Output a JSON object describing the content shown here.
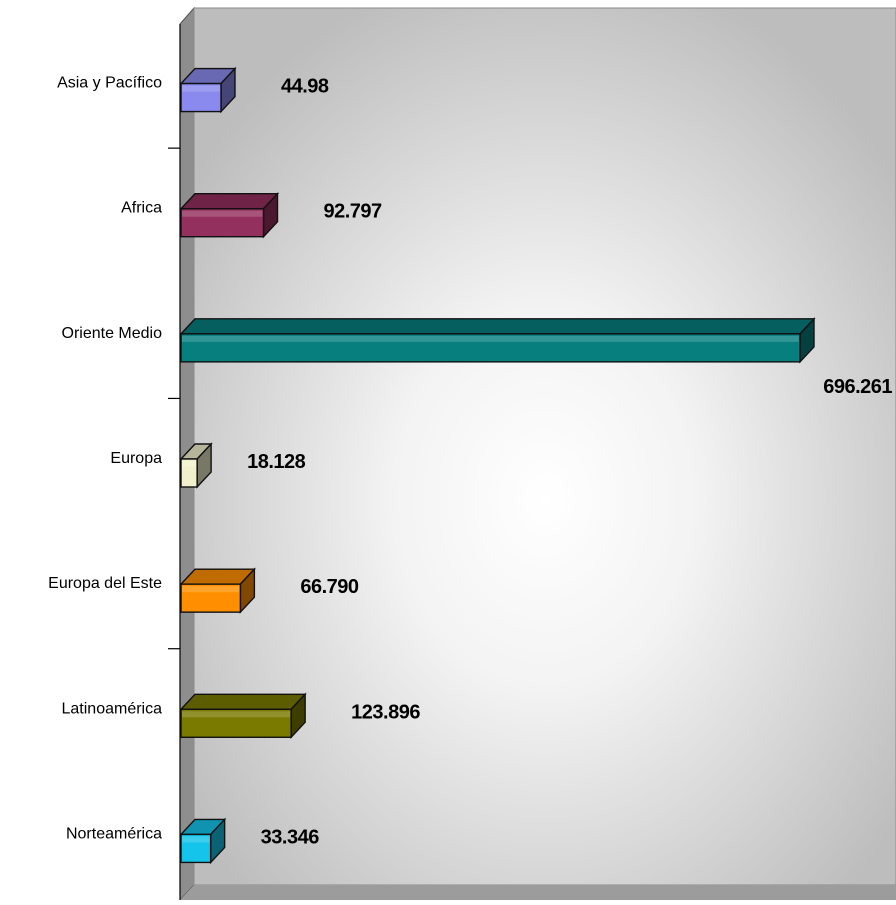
{
  "chart_data": {
    "type": "bar",
    "orientation": "horizontal",
    "style": "3d",
    "categories": [
      "Asia y Pacífico",
      "Africa",
      "Oriente Medio",
      "Europa",
      "Europa del Este",
      "Latinoamérica",
      "Norteamérica"
    ],
    "values": [
      44.98,
      92.797,
      696.261,
      18.128,
      66.79,
      123.896,
      33.346
    ],
    "value_labels": [
      "44.98",
      "92.797",
      "696.261",
      "18.128",
      "66.790",
      "123.896",
      "33.346"
    ],
    "title": "",
    "xlabel": "",
    "ylabel": "",
    "xlim": [
      0,
      700
    ],
    "grid": false,
    "legend": "none",
    "bar_colors": [
      "#8a8aee",
      "#94305e",
      "#087f7f",
      "#f2f0cc",
      "#ff8f00",
      "#7a7a00",
      "#14c4ea"
    ],
    "wall_color": "#c0c0c0",
    "wall_highlight": "#ffffff"
  }
}
